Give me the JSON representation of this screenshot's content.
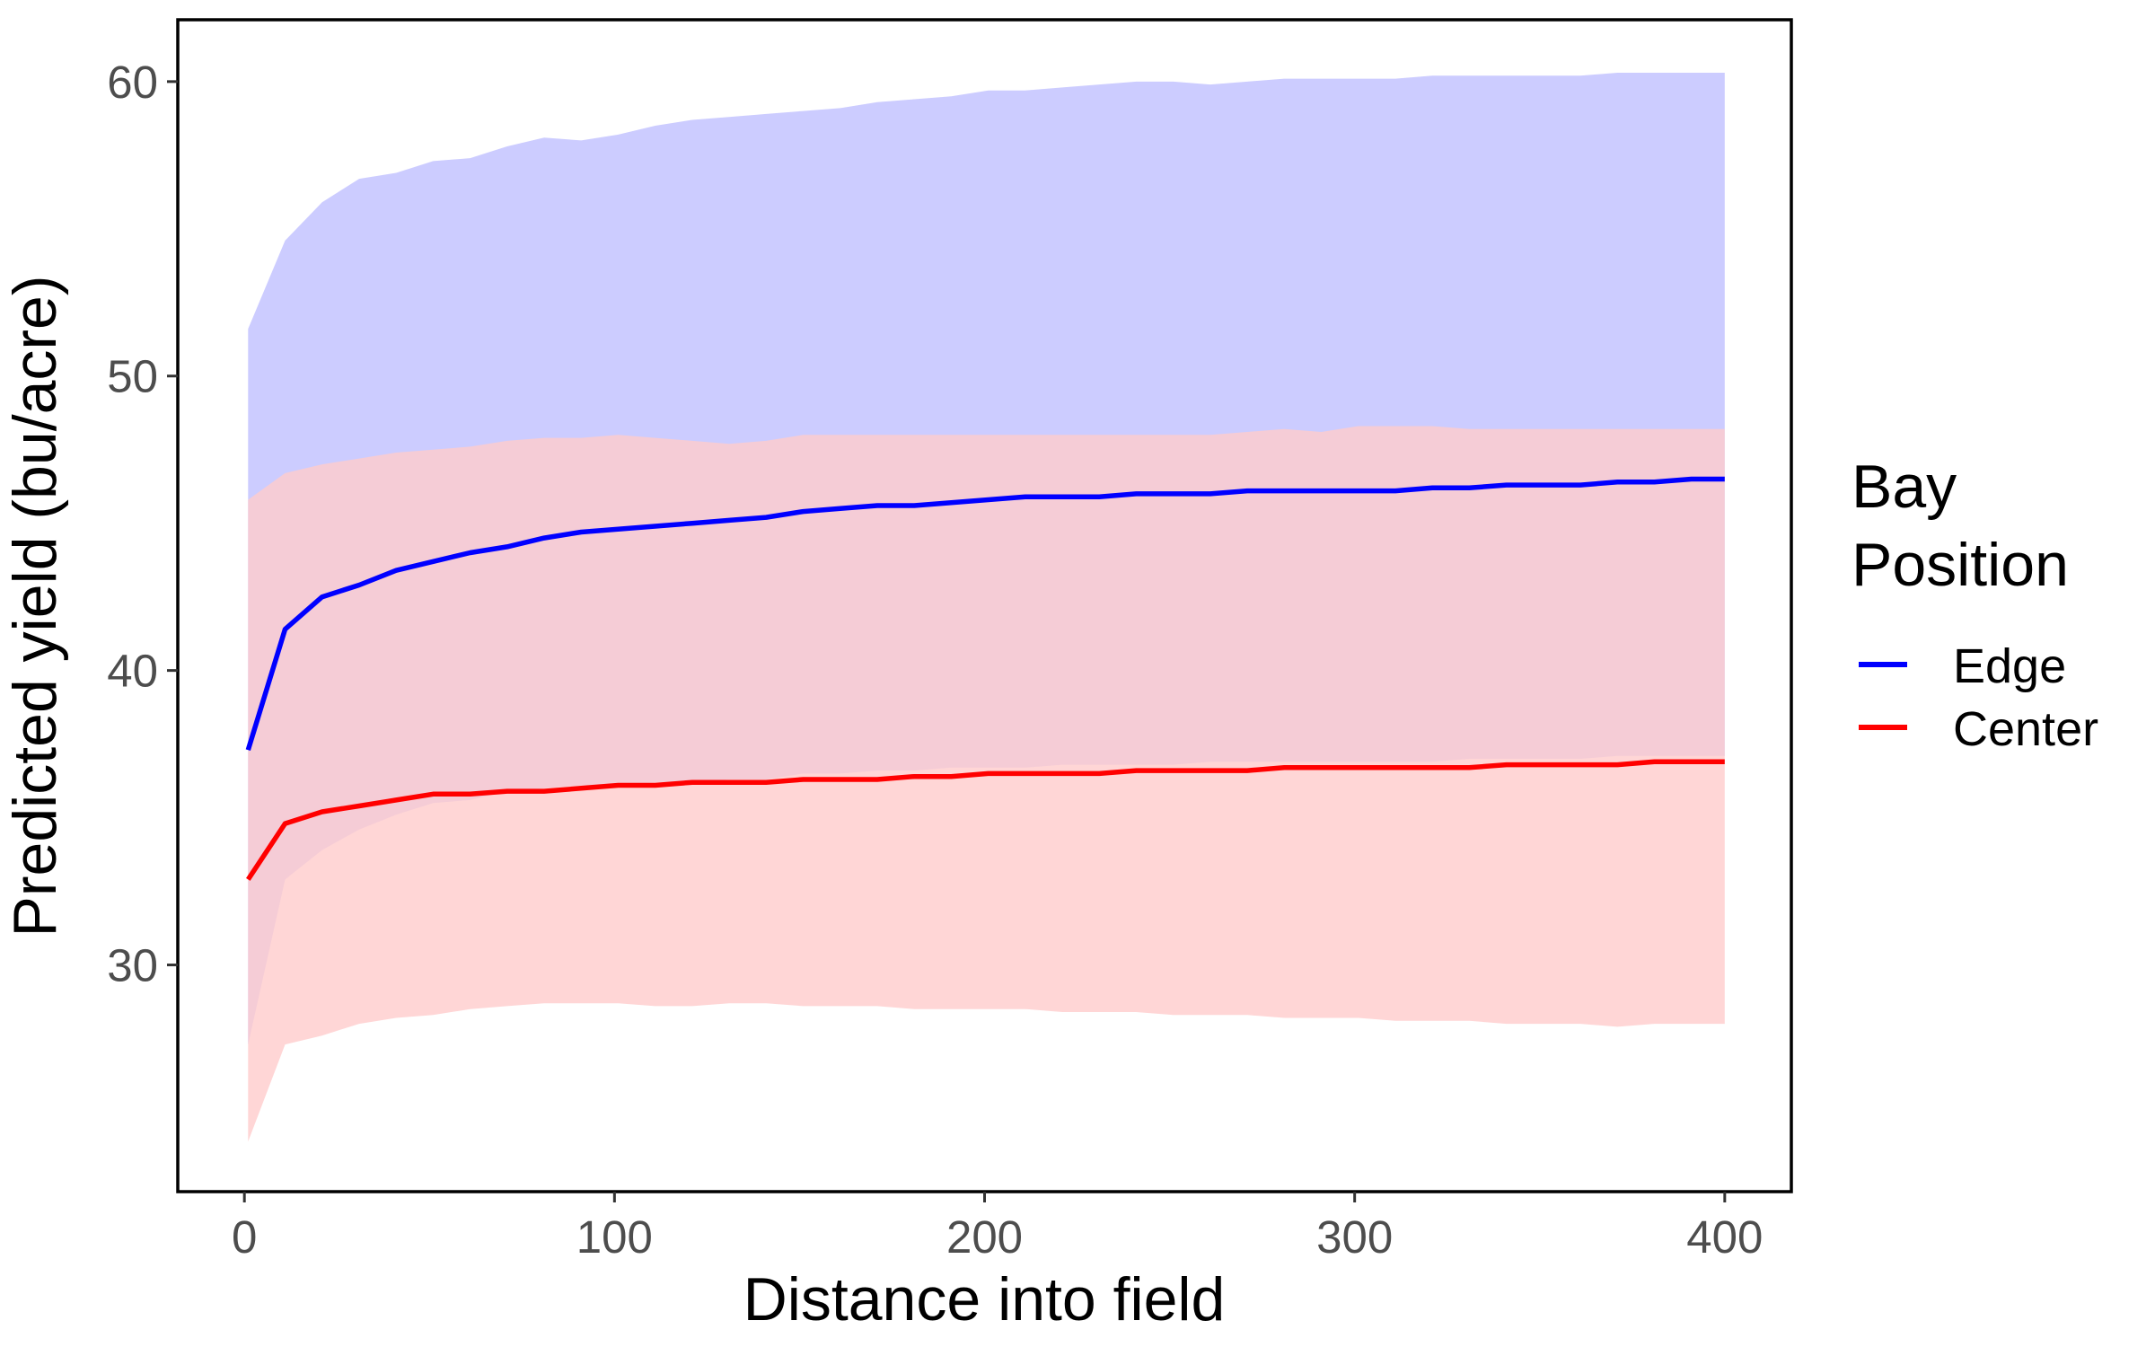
{
  "chart_data": {
    "type": "line",
    "xlabel": "Distance into field",
    "ylabel": "Predicted yield (bu/acre)",
    "xlim": [
      -18,
      418
    ],
    "ylim": [
      22.3,
      62.1
    ],
    "xticks": [
      0,
      100,
      200,
      300,
      400
    ],
    "yticks": [
      30,
      40,
      50,
      60
    ],
    "xtick_labels": [
      "0",
      "100",
      "200",
      "300",
      "400"
    ],
    "ytick_labels": [
      "30",
      "40",
      "50",
      "60"
    ],
    "grid": false,
    "legend": {
      "title_lines": [
        "Bay",
        "Position"
      ],
      "placement": "right"
    },
    "x": [
      1,
      11,
      21,
      31,
      41,
      51,
      61,
      71,
      81,
      91,
      101,
      111,
      121,
      131,
      141,
      151,
      161,
      171,
      181,
      191,
      201,
      211,
      221,
      231,
      241,
      251,
      261,
      271,
      281,
      291,
      301,
      311,
      321,
      331,
      341,
      351,
      361,
      371,
      381,
      391,
      400
    ],
    "series": [
      {
        "name": "Edge",
        "color": "#0000ff",
        "band_color": "#ccccff",
        "values": [
          37.3,
          41.4,
          42.5,
          42.9,
          43.4,
          43.7,
          44.0,
          44.2,
          44.5,
          44.7,
          44.8,
          44.9,
          45.0,
          45.1,
          45.2,
          45.4,
          45.5,
          45.6,
          45.6,
          45.7,
          45.8,
          45.9,
          45.9,
          45.9,
          46.0,
          46.0,
          46.0,
          46.1,
          46.1,
          46.1,
          46.1,
          46.1,
          46.2,
          46.2,
          46.3,
          46.3,
          46.3,
          46.4,
          46.4,
          46.5,
          46.5
        ],
        "upper": [
          51.6,
          54.6,
          55.9,
          56.7,
          56.9,
          57.3,
          57.4,
          57.8,
          58.1,
          58.0,
          58.2,
          58.5,
          58.7,
          58.8,
          58.9,
          59.0,
          59.1,
          59.3,
          59.4,
          59.5,
          59.7,
          59.7,
          59.8,
          59.9,
          60.0,
          60.0,
          59.9,
          60.0,
          60.1,
          60.1,
          60.1,
          60.1,
          60.2,
          60.2,
          60.2,
          60.2,
          60.2,
          60.3,
          60.3,
          60.3,
          60.3
        ],
        "lower": [
          27.3,
          32.9,
          33.9,
          34.6,
          35.1,
          35.5,
          35.6,
          35.9,
          36.0,
          36.1,
          36.1,
          36.2,
          36.2,
          36.3,
          36.3,
          36.5,
          36.5,
          36.6,
          36.6,
          36.7,
          36.7,
          36.7,
          36.8,
          36.8,
          36.8,
          36.8,
          36.9,
          36.9,
          36.9,
          36.9,
          36.9,
          36.9,
          36.9,
          37.0,
          37.0,
          37.0,
          37.0,
          37.1,
          37.1,
          37.1,
          37.1
        ]
      },
      {
        "name": "Center",
        "color": "#ff0000",
        "band_color": "#ffcccc",
        "values": [
          32.9,
          34.8,
          35.2,
          35.4,
          35.6,
          35.8,
          35.8,
          35.9,
          35.9,
          36.0,
          36.1,
          36.1,
          36.2,
          36.2,
          36.2,
          36.3,
          36.3,
          36.3,
          36.4,
          36.4,
          36.5,
          36.5,
          36.5,
          36.5,
          36.6,
          36.6,
          36.6,
          36.6,
          36.7,
          36.7,
          36.7,
          36.7,
          36.7,
          36.7,
          36.8,
          36.8,
          36.8,
          36.8,
          36.9,
          36.9,
          36.9
        ],
        "upper": [
          45.8,
          46.7,
          47.0,
          47.2,
          47.4,
          47.5,
          47.6,
          47.8,
          47.9,
          47.9,
          48.0,
          47.9,
          47.8,
          47.7,
          47.8,
          48.0,
          48.0,
          48.0,
          48.0,
          48.0,
          48.0,
          48.0,
          48.0,
          48.0,
          48.0,
          48.0,
          48.0,
          48.1,
          48.2,
          48.1,
          48.3,
          48.3,
          48.3,
          48.2,
          48.2,
          48.2,
          48.2,
          48.2,
          48.2,
          48.2,
          48.2
        ],
        "lower": [
          24.0,
          27.3,
          27.6,
          28.0,
          28.2,
          28.3,
          28.5,
          28.6,
          28.7,
          28.7,
          28.7,
          28.6,
          28.6,
          28.7,
          28.7,
          28.6,
          28.6,
          28.6,
          28.5,
          28.5,
          28.5,
          28.5,
          28.4,
          28.4,
          28.4,
          28.3,
          28.3,
          28.3,
          28.2,
          28.2,
          28.2,
          28.1,
          28.1,
          28.1,
          28.0,
          28.0,
          28.0,
          27.9,
          28.0,
          28.0,
          28.0
        ]
      }
    ]
  }
}
